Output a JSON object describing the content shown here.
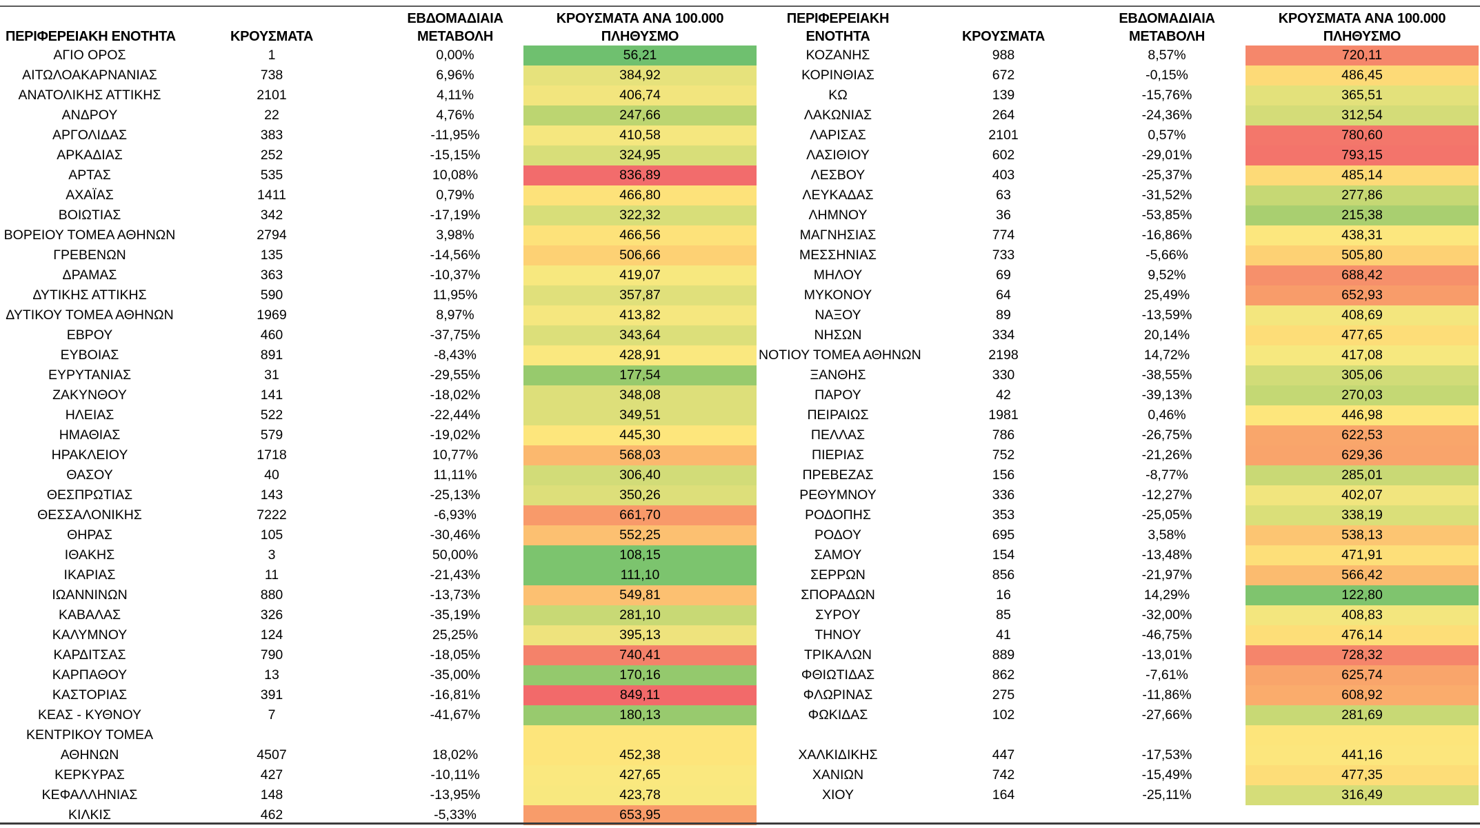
{
  "headers": {
    "region": [
      "ΠΕΡΙΦΕΡΕΙΑΚΗ ΕΝΟΤΗΤΑ"
    ],
    "region_right": [
      "ΠΕΡΙΦΕΡΕΙΑΚΗ",
      "ΕΝΟΤΗΤΑ"
    ],
    "cases": "ΚΡΟΥΣΜΑΤΑ",
    "weekly_change": [
      "ΕΒΔΟΜΑΔΙΑΙΑ",
      "ΜΕΤΑΒΟΛΗ"
    ],
    "rate": [
      "ΚΡΟΥΣΜΑΤΑ ΑΝΑ 100.000",
      "ΠΛΗΘΥΣΜΟ"
    ]
  },
  "left_rows": [
    {
      "name": "ΑΓΙΟ ΟΡΟΣ",
      "cases": "1",
      "change": "0,00%",
      "rate": "56,21",
      "color": "#6fc06f"
    },
    {
      "name": "ΑΙΤΩΛΟΑΚΑΡΝΑΝΙΑΣ",
      "cases": "738",
      "change": "6,96%",
      "rate": "384,92",
      "color": "#e6e27c"
    },
    {
      "name": "ΑΝΑΤΟΛΙΚΗΣ ΑΤΤΙΚΗΣ",
      "cases": "2101",
      "change": "4,11%",
      "rate": "406,74",
      "color": "#f2e57e"
    },
    {
      "name": "ΑΝΔΡΟΥ",
      "cases": "22",
      "change": "4,76%",
      "rate": "247,66",
      "color": "#bcd571"
    },
    {
      "name": "ΑΡΓΟΛΙΔΑΣ",
      "cases": "383",
      "change": "-11,95%",
      "rate": "410,58",
      "color": "#f5e77f"
    },
    {
      "name": "ΑΡΚΑΔΙΑΣ",
      "cases": "252",
      "change": "-15,15%",
      "rate": "324,95",
      "color": "#d8de79"
    },
    {
      "name": "ΑΡΤΑΣ",
      "cases": "535",
      "change": "10,08%",
      "rate": "836,89",
      "color": "#f26c6c"
    },
    {
      "name": "ΑΧΑΪΑΣ",
      "cases": "1411",
      "change": "0,79%",
      "rate": "466,80",
      "color": "#fde27a"
    },
    {
      "name": "ΒΟΙΩΤΙΑΣ",
      "cases": "342",
      "change": "-17,19%",
      "rate": "322,32",
      "color": "#d8de79"
    },
    {
      "name": "ΒΟΡΕΙΟΥ ΤΟΜΕΑ ΑΘΗΝΩΝ",
      "cases": "2794",
      "change": "3,98%",
      "rate": "466,56",
      "color": "#fde27a"
    },
    {
      "name": "ΓΡΕΒΕΝΩΝ",
      "cases": "135",
      "change": "-14,56%",
      "rate": "506,66",
      "color": "#fdd174"
    },
    {
      "name": "ΔΡΑΜΑΣ",
      "cases": "363",
      "change": "-10,37%",
      "rate": "419,07",
      "color": "#f7e87f"
    },
    {
      "name": "ΔΥΤΙΚΗΣ ΑΤΤΙΚΗΣ",
      "cases": "590",
      "change": "11,95%",
      "rate": "357,87",
      "color": "#e0e07b"
    },
    {
      "name": "ΔΥΤΙΚΟΥ ΤΟΜΕΑ ΑΘΗΝΩΝ",
      "cases": "1969",
      "change": "8,97%",
      "rate": "413,82",
      "color": "#f5e77f"
    },
    {
      "name": "ΕΒΡΟΥ",
      "cases": "460",
      "change": "-37,75%",
      "rate": "343,64",
      "color": "#dcdf7a"
    },
    {
      "name": "ΕΥΒΟΙΑΣ",
      "cases": "891",
      "change": "-8,43%",
      "rate": "428,91",
      "color": "#fae87f"
    },
    {
      "name": "ΕΥΡΥΤΑΝΙΑΣ",
      "cases": "31",
      "change": "-29,55%",
      "rate": "177,54",
      "color": "#97ca6d"
    },
    {
      "name": "ΖΑΚΥΝΘΟΥ",
      "cases": "141",
      "change": "-18,02%",
      "rate": "348,08",
      "color": "#dddf7a"
    },
    {
      "name": "ΗΛΕΙΑΣ",
      "cases": "522",
      "change": "-22,44%",
      "rate": "349,51",
      "color": "#dddf7a"
    },
    {
      "name": "ΗΜΑΘΙΑΣ",
      "cases": "579",
      "change": "-19,02%",
      "rate": "445,30",
      "color": "#fde67c"
    },
    {
      "name": "ΗΡΑΚΛΕΙΟΥ",
      "cases": "1718",
      "change": "10,77%",
      "rate": "568,03",
      "color": "#fbb86e"
    },
    {
      "name": "ΘΑΣΟΥ",
      "cases": "40",
      "change": "11,11%",
      "rate": "306,40",
      "color": "#d2dc78"
    },
    {
      "name": "ΘΕΣΠΡΩΤΙΑΣ",
      "cases": "143",
      "change": "-25,13%",
      "rate": "350,26",
      "color": "#dddf7a"
    },
    {
      "name": "ΘΕΣΣΑΛΟΝΙΚΗΣ",
      "cases": "7222",
      "change": "-6,93%",
      "rate": "661,70",
      "color": "#f89a6a"
    },
    {
      "name": "ΘΗΡΑΣ",
      "cases": "105",
      "change": "-30,46%",
      "rate": "552,25",
      "color": "#fcc071"
    },
    {
      "name": "ΙΘΑΚΗΣ",
      "cases": "3",
      "change": "50,00%",
      "rate": "108,15",
      "color": "#7cc46e"
    },
    {
      "name": "ΙΚΑΡΙΑΣ",
      "cases": "11",
      "change": "-21,43%",
      "rate": "111,10",
      "color": "#7cc46e"
    },
    {
      "name": "ΙΩΑΝΝΙΝΩΝ",
      "cases": "880",
      "change": "-13,73%",
      "rate": "549,81",
      "color": "#fcc071"
    },
    {
      "name": "ΚΑΒΑΛΑΣ",
      "cases": "326",
      "change": "-35,19%",
      "rate": "281,10",
      "color": "#c8d975"
    },
    {
      "name": "ΚΑΛΥΜΝΟΥ",
      "cases": "124",
      "change": "25,25%",
      "rate": "395,13",
      "color": "#eee37d"
    },
    {
      "name": "ΚΑΡΔΙΤΣΑΣ",
      "cases": "790",
      "change": "-18,05%",
      "rate": "740,41",
      "color": "#f4826a"
    },
    {
      "name": "ΚΑΡΠΑΘΟΥ",
      "cases": "13",
      "change": "-35,00%",
      "rate": "170,16",
      "color": "#94c96d"
    },
    {
      "name": "ΚΑΣΤΟΡΙΑΣ",
      "cases": "391",
      "change": "-16,81%",
      "rate": "849,11",
      "color": "#f26a6a"
    },
    {
      "name": "ΚΕΑΣ - ΚΥΘΝΟΥ",
      "cases": "7",
      "change": "-41,67%",
      "rate": "180,13",
      "color": "#98ca6e"
    },
    {
      "name_lines": [
        "ΚΕΝΤΡΙΚΟΥ ΤΟΜΕΑ",
        "ΑΘΗΝΩΝ"
      ],
      "cases": "4507",
      "change": "18,02%",
      "rate": "452,38",
      "color": "#fde57b"
    },
    {
      "name": "ΚΕΡΚΥΡΑΣ",
      "cases": "427",
      "change": "-10,11%",
      "rate": "427,65",
      "color": "#fae87f"
    },
    {
      "name": "ΚΕΦΑΛΛΗΝΙΑΣ",
      "cases": "148",
      "change": "-13,95%",
      "rate": "423,78",
      "color": "#f8e87f"
    },
    {
      "name": "ΚΙΛΚΙΣ",
      "cases": "462",
      "change": "-5,33%",
      "rate": "653,95",
      "color": "#f89c6a"
    }
  ],
  "right_rows": [
    {
      "name": "ΚΟΖΑΝΗΣ",
      "cases": "988",
      "change": "8,57%",
      "rate": "720,11",
      "color": "#f5876b"
    },
    {
      "name": "ΚΟΡΙΝΘΙΑΣ",
      "cases": "672",
      "change": "-0,15%",
      "rate": "486,45",
      "color": "#fdda77"
    },
    {
      "name": "ΚΩ",
      "cases": "139",
      "change": "-15,76%",
      "rate": "365,51",
      "color": "#e3e17b"
    },
    {
      "name": "ΛΑΚΩΝΙΑΣ",
      "cases": "264",
      "change": "-24,36%",
      "rate": "312,54",
      "color": "#d4dc78"
    },
    {
      "name": "ΛΑΡΙΣΑΣ",
      "cases": "2101",
      "change": "0,57%",
      "rate": "780,60",
      "color": "#f3776b"
    },
    {
      "name": "ΛΑΣΙΘΙΟΥ",
      "cases": "602",
      "change": "-29,01%",
      "rate": "793,15",
      "color": "#f3746b"
    },
    {
      "name": "ΛΕΣΒΟΥ",
      "cases": "403",
      "change": "-25,37%",
      "rate": "485,14",
      "color": "#fdda77"
    },
    {
      "name": "ΛΕΥΚΑΔΑΣ",
      "cases": "63",
      "change": "-31,52%",
      "rate": "277,86",
      "color": "#c6d874"
    },
    {
      "name": "ΛΗΜΝΟΥ",
      "cases": "36",
      "change": "-53,85%",
      "rate": "215,38",
      "color": "#a9cf70"
    },
    {
      "name": "ΜΑΓΝΗΣΙΑΣ",
      "cases": "774",
      "change": "-16,86%",
      "rate": "438,31",
      "color": "#fce77e"
    },
    {
      "name": "ΜΕΣΣΗΝΙΑΣ",
      "cases": "733",
      "change": "-5,66%",
      "rate": "505,80",
      "color": "#fdd174"
    },
    {
      "name": "ΜΗΛΟΥ",
      "cases": "69",
      "change": "9,52%",
      "rate": "688,42",
      "color": "#f6906b"
    },
    {
      "name": "ΜΥΚΟΝΟΥ",
      "cases": "64",
      "change": "25,49%",
      "rate": "652,93",
      "color": "#f89c6a"
    },
    {
      "name": "ΝΑΞΟΥ",
      "cases": "89",
      "change": "-13,59%",
      "rate": "408,69",
      "color": "#f3e67e"
    },
    {
      "name": "ΝΗΣΩΝ",
      "cases": "334",
      "change": "20,14%",
      "rate": "477,65",
      "color": "#fddd78"
    },
    {
      "name": "ΝΟΤΙΟΥ ΤΟΜΕΑ ΑΘΗΝΩΝ",
      "cases": "2198",
      "change": "14,72%",
      "rate": "417,08",
      "color": "#f6e87f"
    },
    {
      "name": "ΞΑΝΘΗΣ",
      "cases": "330",
      "change": "-38,55%",
      "rate": "305,06",
      "color": "#d1dc78"
    },
    {
      "name": "ΠΑΡΟΥ",
      "cases": "42",
      "change": "-39,13%",
      "rate": "270,03",
      "color": "#c4d874"
    },
    {
      "name": "ΠΕΙΡΑΙΩΣ",
      "cases": "1981",
      "change": "0,46%",
      "rate": "446,98",
      "color": "#fde67c"
    },
    {
      "name": "ΠΕΛΛΑΣ",
      "cases": "786",
      "change": "-26,75%",
      "rate": "622,53",
      "color": "#f9a66b"
    },
    {
      "name": "ΠΙΕΡΙΑΣ",
      "cases": "752",
      "change": "-21,26%",
      "rate": "629,36",
      "color": "#f9a46b"
    },
    {
      "name": "ΠΡΕΒΕΖΑΣ",
      "cases": "156",
      "change": "-8,77%",
      "rate": "285,01",
      "color": "#c9d975"
    },
    {
      "name": "ΡΕΘΥΜΝΟΥ",
      "cases": "336",
      "change": "-12,27%",
      "rate": "402,07",
      "color": "#f1e57e"
    },
    {
      "name": "ΡΟΔΟΠΗΣ",
      "cases": "353",
      "change": "-25,05%",
      "rate": "338,19",
      "color": "#dadf79"
    },
    {
      "name": "ΡΟΔΟΥ",
      "cases": "695",
      "change": "3,58%",
      "rate": "538,13",
      "color": "#fcc572"
    },
    {
      "name": "ΣΑΜΟΥ",
      "cases": "154",
      "change": "-13,48%",
      "rate": "471,91",
      "color": "#fddf79"
    },
    {
      "name": "ΣΕΡΡΩΝ",
      "cases": "856",
      "change": "-21,97%",
      "rate": "566,42",
      "color": "#fbbb6f"
    },
    {
      "name": "ΣΠΟΡΑΔΩΝ",
      "cases": "16",
      "change": "14,29%",
      "rate": "122,80",
      "color": "#7fc46e"
    },
    {
      "name": "ΣΥΡΟΥ",
      "cases": "85",
      "change": "-32,00%",
      "rate": "408,83",
      "color": "#f3e67e"
    },
    {
      "name": "ΤΗΝΟΥ",
      "cases": "41",
      "change": "-46,75%",
      "rate": "476,14",
      "color": "#fdde78"
    },
    {
      "name": "ΤΡΙΚΑΛΩΝ",
      "cases": "889",
      "change": "-13,01%",
      "rate": "728,32",
      "color": "#f5856b"
    },
    {
      "name": "ΦΘΙΩΤΙΔΑΣ",
      "cases": "862",
      "change": "-7,61%",
      "rate": "625,74",
      "color": "#f9a56b"
    },
    {
      "name": "ΦΛΩΡΙΝΑΣ",
      "cases": "275",
      "change": "-11,86%",
      "rate": "608,92",
      "color": "#faac6c"
    },
    {
      "name": "ΦΩΚΙΔΑΣ",
      "cases": "102",
      "change": "-27,66%",
      "rate": "281,69",
      "color": "#c8d975"
    },
    {
      "name": "",
      "cases": "",
      "change": "",
      "rate": "",
      "color": "#fde57b"
    },
    {
      "name": "ΧΑΛΚΙΔΙΚΗΣ",
      "cases": "447",
      "change": "-17,53%",
      "rate": "441,16",
      "color": "#fce67d"
    },
    {
      "name": "ΧΑΝΙΩΝ",
      "cases": "742",
      "change": "-15,49%",
      "rate": "477,35",
      "color": "#fddd78"
    },
    {
      "name": "ΧΙΟΥ",
      "cases": "164",
      "change": "-25,11%",
      "rate": "316,49",
      "color": "#d5dd79"
    }
  ]
}
